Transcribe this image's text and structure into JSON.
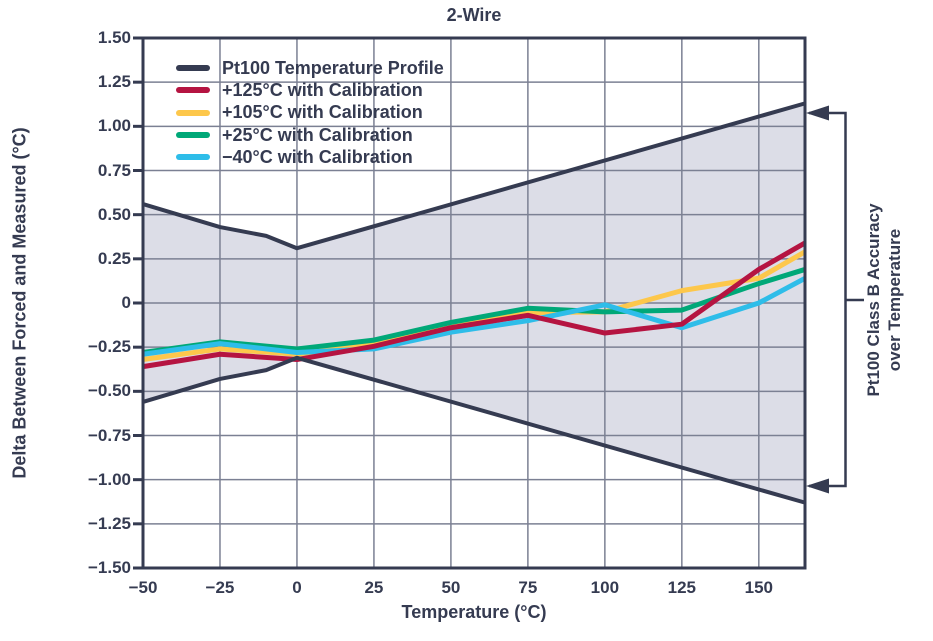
{
  "title": "2-Wire",
  "x_axis": {
    "label": "Temperature (°C)",
    "tick_values": [
      -50,
      -25,
      0,
      25,
      50,
      75,
      100,
      125,
      150
    ],
    "tick_labels": [
      "−50",
      "−25",
      "0",
      "25",
      "50",
      "75",
      "100",
      "125",
      "150"
    ]
  },
  "y_axis": {
    "label": "Delta Between Forced and Measured (°C)",
    "tick_values": [
      1.5,
      1.25,
      1.0,
      0.75,
      0.5,
      0.25,
      0,
      -0.25,
      -0.5,
      -0.75,
      -1.0,
      -1.25,
      -1.5
    ],
    "tick_labels": [
      "1.50",
      "1.25",
      "1.00",
      "0.75",
      "0.50",
      "0.25",
      "0",
      "−0.25",
      "−0.50",
      "−0.75",
      "−1.00",
      "−1.25",
      "−1.50"
    ]
  },
  "annotation": {
    "line1": "Pt100 Class B Accuracy",
    "line2": "over Temperature"
  },
  "colors": {
    "text": "#353b51",
    "dark_line": "#353b51",
    "grid": "#7b8093",
    "band_fill": "#dcdde7",
    "red": "#b51441",
    "yellow": "#fdc74b",
    "green": "#00a878",
    "cyan": "#2ebde9"
  },
  "chart_data": {
    "type": "line",
    "title": "2-Wire",
    "xlabel": "Temperature (°C)",
    "ylabel": "Delta Between Forced and Measured (°C)",
    "xlim": [
      -50,
      165
    ],
    "ylim": [
      -1.5,
      1.5
    ],
    "grid": true,
    "legend_position": "top-left-inside",
    "band": {
      "name": "Pt100 Temperature Profile",
      "color": "#353b51",
      "fill": "#dcdde7",
      "x": [
        -50,
        -25,
        -10,
        0,
        165
      ],
      "upper": [
        0.56,
        0.43,
        0.38,
        0.31,
        1.13
      ],
      "lower": [
        -0.56,
        -0.43,
        -0.38,
        -0.31,
        -1.13
      ]
    },
    "x": [
      -50,
      -25,
      0,
      25,
      50,
      75,
      100,
      125,
      150,
      165
    ],
    "series": [
      {
        "name": "+125°C with Calibration",
        "color": "#b51441",
        "values": [
          -0.36,
          -0.29,
          -0.32,
          -0.245,
          -0.14,
          -0.07,
          -0.17,
          -0.12,
          0.19,
          0.34
        ]
      },
      {
        "name": "+105°C with Calibration",
        "color": "#fdc74b",
        "values": [
          -0.32,
          -0.26,
          -0.29,
          -0.23,
          -0.125,
          -0.055,
          -0.05,
          0.07,
          0.14,
          0.29
        ]
      },
      {
        "name": "+25°C with Calibration",
        "color": "#00a878",
        "values": [
          -0.28,
          -0.22,
          -0.26,
          -0.21,
          -0.11,
          -0.03,
          -0.05,
          -0.04,
          0.11,
          0.19
        ]
      },
      {
        "name": "−40°C with Calibration",
        "color": "#2ebde9",
        "values": [
          -0.29,
          -0.23,
          -0.28,
          -0.26,
          -0.165,
          -0.1,
          -0.01,
          -0.14,
          0.0,
          0.14
        ]
      }
    ]
  }
}
